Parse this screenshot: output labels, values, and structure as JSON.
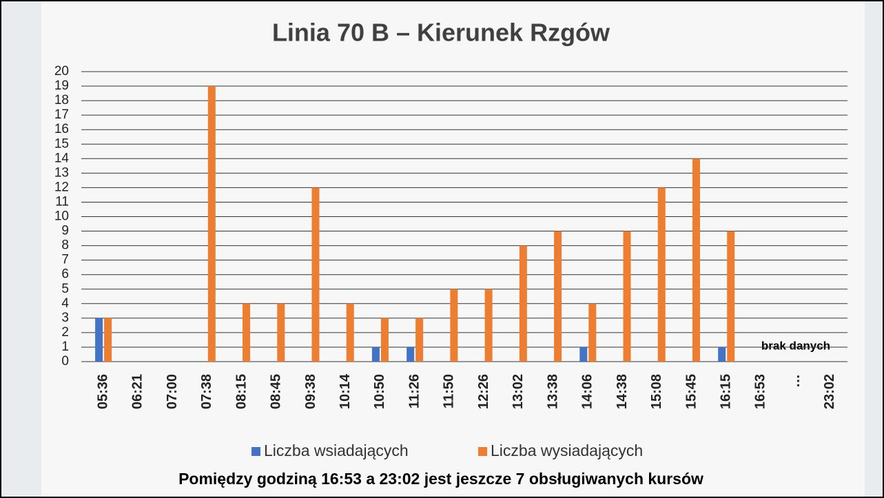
{
  "chart_data": {
    "type": "bar",
    "title": "Linia 70 B – Kierunek Rzgów",
    "categories": [
      "05:36",
      "06:21",
      "07:00",
      "07:38",
      "08:15",
      "08:45",
      "09:38",
      "10:14",
      "10:50",
      "11:26",
      "11:50",
      "12:26",
      "13:02",
      "13:38",
      "14:06",
      "14:38",
      "15:08",
      "15:45",
      "16:15",
      "16:53",
      "…",
      "23:02"
    ],
    "series": [
      {
        "name": "Liczba wsiadających",
        "color": "#4472c4",
        "values": [
          3,
          0,
          0,
          0,
          0,
          0,
          0,
          0,
          1,
          1,
          0,
          0,
          0,
          0,
          1,
          0,
          0,
          0,
          1,
          null,
          null,
          null
        ]
      },
      {
        "name": "Liczba wysiadających",
        "color": "#ed7d31",
        "values": [
          3,
          0,
          0,
          19,
          4,
          4,
          12,
          4,
          3,
          3,
          5,
          5,
          8,
          9,
          4,
          9,
          12,
          14,
          9,
          null,
          null,
          null
        ]
      }
    ],
    "ylim": [
      0,
      20
    ],
    "yticks": [
      0,
      1,
      2,
      3,
      4,
      5,
      6,
      7,
      8,
      9,
      10,
      11,
      12,
      13,
      14,
      15,
      16,
      17,
      18,
      19,
      20
    ],
    "grid": true,
    "legend": "bottom",
    "annotations": [
      "brak danych"
    ],
    "footer": "Pomiędzy godziną 16:53 a 23:02 jest jeszcze 7 obsługiwanych kursów"
  }
}
